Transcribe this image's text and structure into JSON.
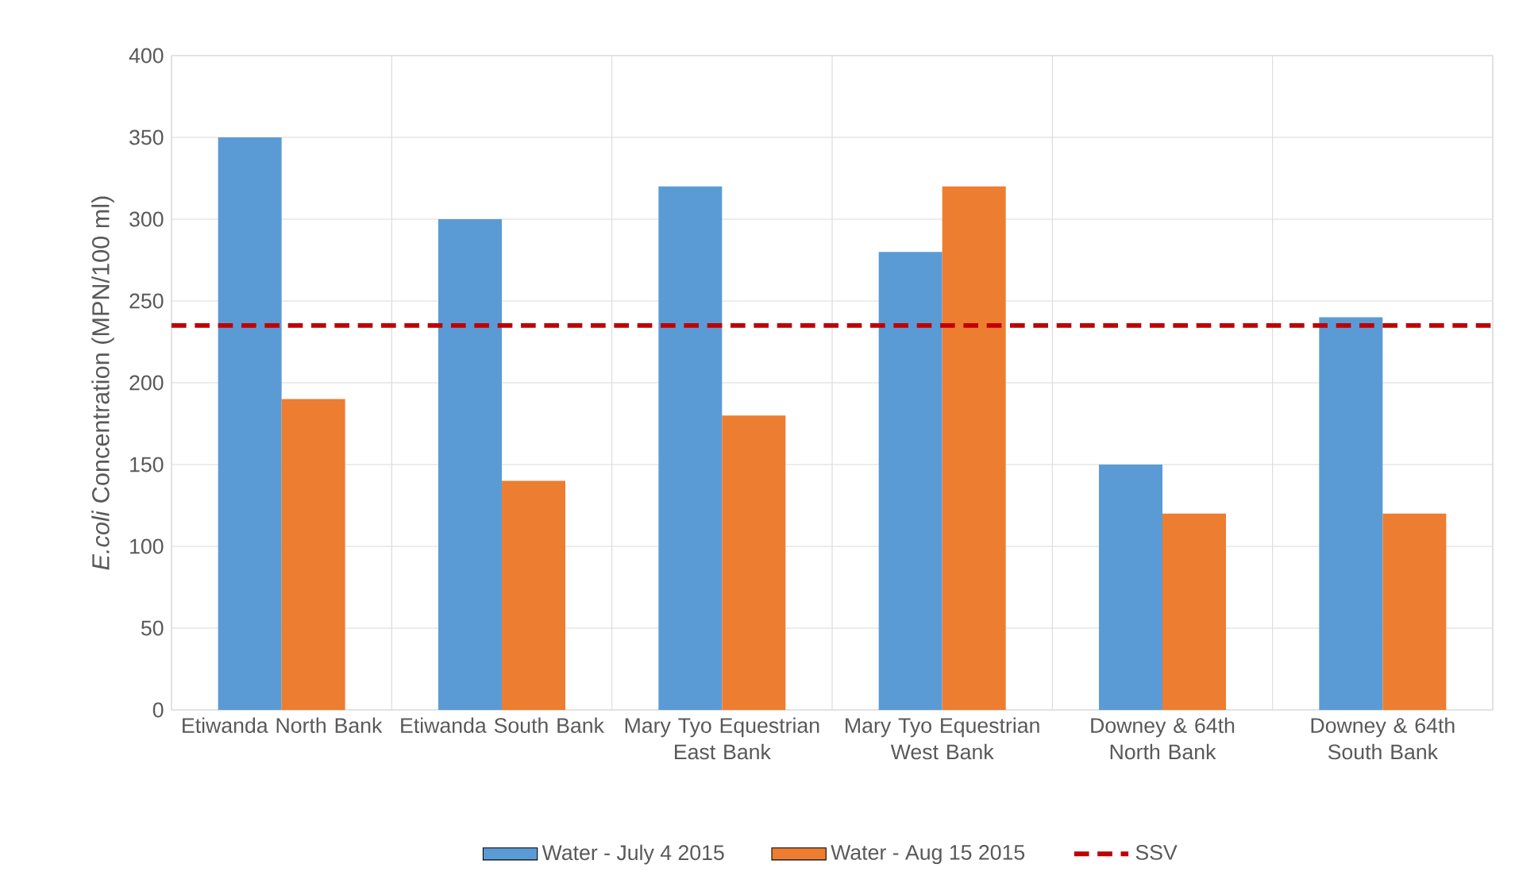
{
  "chart_data": {
    "type": "bar",
    "ylabel": "*E.coli* Concentration (MPN/100 ml)",
    "categories": [
      "Etiwanda North Bank",
      "Etiwanda South Bank",
      "Mary Tyo Equestrian East Bank",
      "Mary Tyo Equestrian West Bank",
      "Downey & 64th North Bank",
      "Downey & 64th South Bank"
    ],
    "series": [
      {
        "name": "Water - July 4 2015",
        "color": "#5b9bd5",
        "values": [
          350,
          300,
          320,
          280,
          150,
          240
        ]
      },
      {
        "name": "Water - Aug 15 2015",
        "color": "#ed7d31",
        "values": [
          190,
          140,
          180,
          320,
          120,
          120
        ]
      }
    ],
    "ylim": [
      0,
      400
    ],
    "yticks": [
      0,
      50,
      100,
      150,
      200,
      250,
      300,
      350,
      400
    ],
    "ref_lines": [
      {
        "axis": "y",
        "value": 235,
        "label": "SSV",
        "color": "#c00000",
        "line_style": "dashed"
      }
    ],
    "grid": true,
    "legend": "bottom"
  }
}
